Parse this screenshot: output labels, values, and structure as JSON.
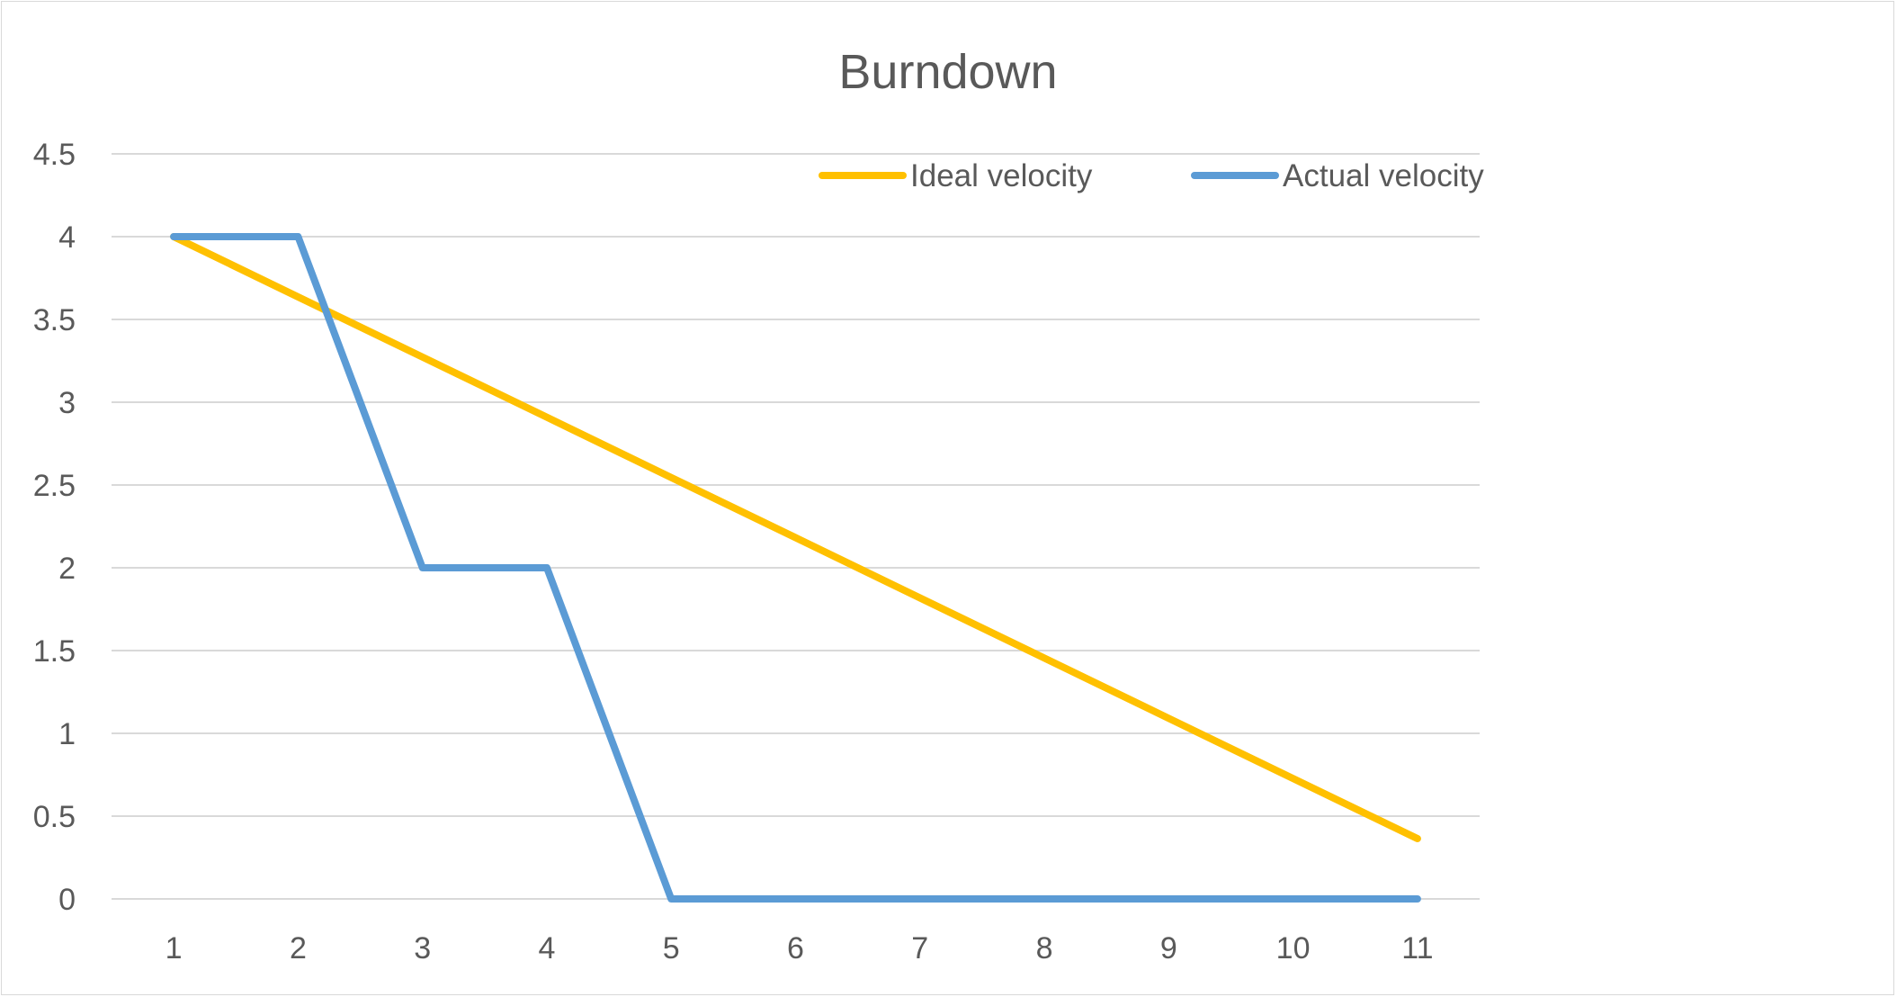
{
  "chart_data": {
    "type": "line",
    "title": "Burndown",
    "xlabel": "",
    "ylabel": "",
    "categories": [
      "1",
      "2",
      "3",
      "4",
      "5",
      "6",
      "7",
      "8",
      "9",
      "10",
      "11"
    ],
    "ylim": [
      0,
      4.5
    ],
    "yticks": [
      "0",
      "0.5",
      "1",
      "1.5",
      "2",
      "2.5",
      "3",
      "3.5",
      "4",
      "4.5"
    ],
    "grid": true,
    "legend_position": "top-right",
    "series": [
      {
        "name": "Ideal velocity",
        "color": "#FFC000",
        "values": [
          4,
          3.636,
          3.273,
          2.909,
          2.545,
          2.182,
          1.818,
          1.455,
          1.091,
          0.727,
          0.364
        ]
      },
      {
        "name": "Actual velocity",
        "color": "#5B9BD5",
        "values": [
          4,
          4,
          2,
          2,
          0,
          0,
          0,
          0,
          0,
          0,
          0
        ]
      }
    ]
  }
}
